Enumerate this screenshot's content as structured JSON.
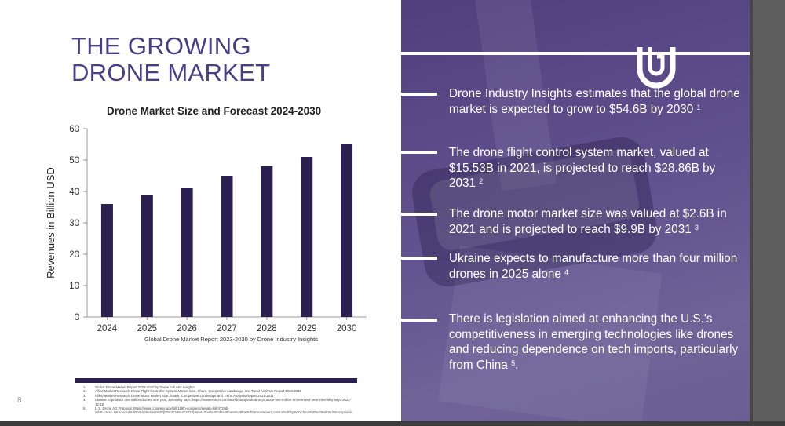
{
  "slide": {
    "title_line1": "THE GROWING",
    "title_line2": "DRONE MARKET",
    "page_number": "8",
    "chart_source": "Global Drone Market Report 2023-2030 by Drone Industry Insights"
  },
  "chart_data": {
    "type": "bar",
    "title": "Drone Market Size and Forecast 2024-2030",
    "xlabel": "",
    "ylabel": "Revenues in Billion USD",
    "categories": [
      "2024",
      "2025",
      "2026",
      "2027",
      "2028",
      "2029",
      "2030"
    ],
    "values": [
      36,
      39,
      41,
      45,
      48,
      51,
      55
    ],
    "ylim": [
      0,
      60
    ],
    "yticks": [
      "0",
      "10",
      "20",
      "30",
      "40",
      "50",
      "60"
    ],
    "grid": false,
    "bar_color": "#2a1f4e"
  },
  "bullets": [
    {
      "text": "Drone Industry Insights estimates that the global drone market is expected to grow to $54.6B by 2030",
      "ref": "1"
    },
    {
      "text": "The drone flight control system market, valued at $15.53B in 2021, is projected to reach $28.86B by 2031",
      "ref": "2"
    },
    {
      "text": "The drone motor market size was valued at $2.6B in 2021 and is projected to reach $9.9B by 2031",
      "ref": "3"
    },
    {
      "text": "Ukraine expects to manufacture more than four million drones in 2025 alone",
      "ref": "4"
    },
    {
      "text": "There is legislation aimed at enhancing the U.S.'s competitiveness in emerging technologies like drones and reducing dependence on tech imports, particularly from China",
      "ref": "5"
    }
  ],
  "footnotes": [
    {
      "num": "1.",
      "text": "Global Drone Market Report 2023-2030 by Drone Industry Insights"
    },
    {
      "num": "2.",
      "text": "Allied Market Research Drone Flight Controller System Market Size, Share, Competitive Landscape and Trend Analysis Report 2023-2032"
    },
    {
      "num": "3.",
      "text": "Allied Market Research Drone Motor Market Size, Share, Competitive Landscape and Trend Analysis Report 2021-2031"
    },
    {
      "num": "4.",
      "text": "Ukraine to produce one million drones next year, Zelenskiy says: https://www.reuters.com/world/europe/ukraine-produce-one-million-drones-next-year-zelenskiy-says-2023-12-19/"
    },
    {
      "num": "5.",
      "text": "U.S. Drone Act Proposal: https://www.congress.gov/bill/118th-congress/senate-bill/473/all-info#:~:text=Introduced%20in%20Senate%20(02%2F16%2F2023)&text=This%20bill%20bans%20the%20procurement,control%20by%20China%20%20with%20exceptions."
    }
  ],
  "colors": {
    "title": "#4a3d87",
    "panel": "#5a4a88",
    "bar": "#2a1f4e"
  },
  "logo_icon": "u-shaped-brand-logo"
}
